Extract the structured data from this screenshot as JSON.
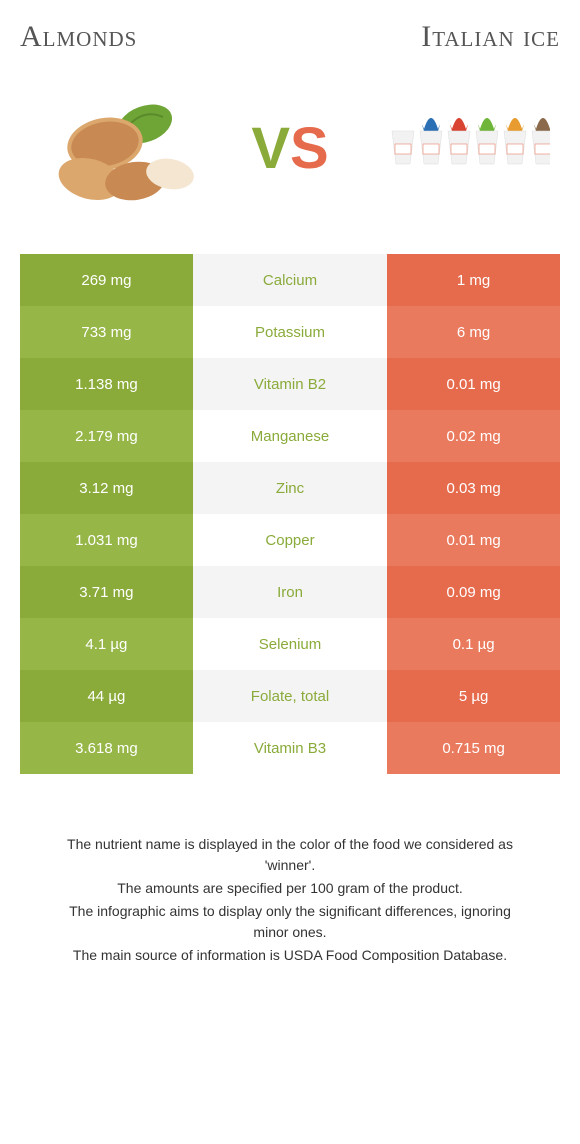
{
  "header": {
    "left_title": "Almonds",
    "right_title": "Italian ice"
  },
  "vs": {
    "v": "V",
    "s": "S"
  },
  "colors": {
    "left_a": "#8aab3a",
    "left_b": "#96b648",
    "right_a": "#e66b4c",
    "right_b": "#ea7a5e",
    "mid_winner_left": "#8aab3a",
    "mid_winner_right": "#e66b4c",
    "almond_shell": "#c88a52",
    "almond_shell_light": "#dba76d",
    "leaf": "#6fa536",
    "leaf_dark": "#5a8a2b",
    "ice_cup": "#f2f2f2",
    "ice_colors": [
      "#ffffff",
      "#2b6fb5",
      "#d94432",
      "#6fb53a",
      "#e89b2e",
      "#8a6a4a"
    ]
  },
  "rows": [
    {
      "nutrient": "Calcium",
      "left": "269 mg",
      "right": "1 mg",
      "winner": "left"
    },
    {
      "nutrient": "Potassium",
      "left": "733 mg",
      "right": "6 mg",
      "winner": "left"
    },
    {
      "nutrient": "Vitamin B2",
      "left": "1.138 mg",
      "right": "0.01 mg",
      "winner": "left"
    },
    {
      "nutrient": "Manganese",
      "left": "2.179 mg",
      "right": "0.02 mg",
      "winner": "left"
    },
    {
      "nutrient": "Zinc",
      "left": "3.12 mg",
      "right": "0.03 mg",
      "winner": "left"
    },
    {
      "nutrient": "Copper",
      "left": "1.031 mg",
      "right": "0.01 mg",
      "winner": "left"
    },
    {
      "nutrient": "Iron",
      "left": "3.71 mg",
      "right": "0.09 mg",
      "winner": "left"
    },
    {
      "nutrient": "Selenium",
      "left": "4.1 µg",
      "right": "0.1 µg",
      "winner": "left"
    },
    {
      "nutrient": "Folate, total",
      "left": "44 µg",
      "right": "5 µg",
      "winner": "left"
    },
    {
      "nutrient": "Vitamin B3",
      "left": "3.618 mg",
      "right": "0.715 mg",
      "winner": "left"
    }
  ],
  "footer": {
    "line1": "The nutrient name is displayed in the color of the food we considered as 'winner'.",
    "line2": "The amounts are specified per 100 gram of the product.",
    "line3": "The infographic aims to display only the significant differences, ignoring minor ones.",
    "line4": "The main source of information is USDA Food Composition Database."
  }
}
